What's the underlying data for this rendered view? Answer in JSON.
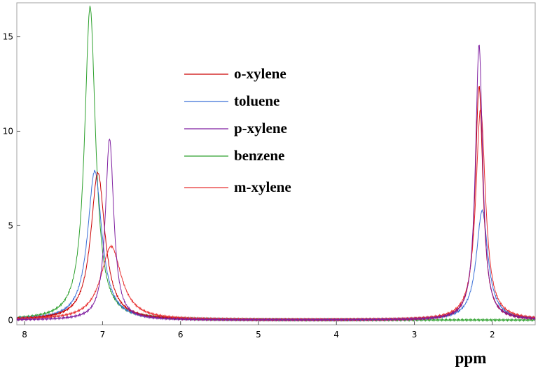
{
  "chart_data": {
    "type": "line",
    "title": "",
    "xlabel": "ppm",
    "ylabel": "",
    "xlim": [
      8.1,
      1.45
    ],
    "ylim": [
      -0.25,
      16.8
    ],
    "x_reversed": true,
    "grid": false,
    "legend_position": "upper-left-center",
    "x_ticks": [
      "8",
      "7",
      "6",
      "5",
      "4",
      "3",
      "2"
    ],
    "y_ticks": [
      "0",
      "5",
      "10",
      "15"
    ],
    "series": [
      {
        "name": "o-xylene",
        "color": "#cc0000",
        "peaks": [
          {
            "center": 7.06,
            "height": 7.8,
            "width": 0.11
          },
          {
            "center": 2.17,
            "height": 12.4,
            "width": 0.06
          }
        ]
      },
      {
        "name": "toluene",
        "color": "#3a6fd8",
        "peaks": [
          {
            "center": 7.1,
            "height": 7.9,
            "width": 0.11
          },
          {
            "center": 2.13,
            "height": 5.8,
            "width": 0.09
          }
        ]
      },
      {
        "name": "p-xylene",
        "color": "#7f1fa0",
        "peaks": [
          {
            "center": 6.91,
            "height": 9.6,
            "width": 0.065
          },
          {
            "center": 2.17,
            "height": 14.6,
            "width": 0.055
          }
        ]
      },
      {
        "name": "benzene",
        "color": "#2ea12e",
        "peaks": [
          {
            "center": 7.16,
            "height": 16.6,
            "width": 0.085
          }
        ]
      },
      {
        "name": "m-xylene",
        "color": "#e83030",
        "peaks": [
          {
            "center": 6.89,
            "height": 3.9,
            "width": 0.16
          },
          {
            "center": 2.15,
            "height": 11.2,
            "width": 0.075
          }
        ]
      }
    ]
  }
}
